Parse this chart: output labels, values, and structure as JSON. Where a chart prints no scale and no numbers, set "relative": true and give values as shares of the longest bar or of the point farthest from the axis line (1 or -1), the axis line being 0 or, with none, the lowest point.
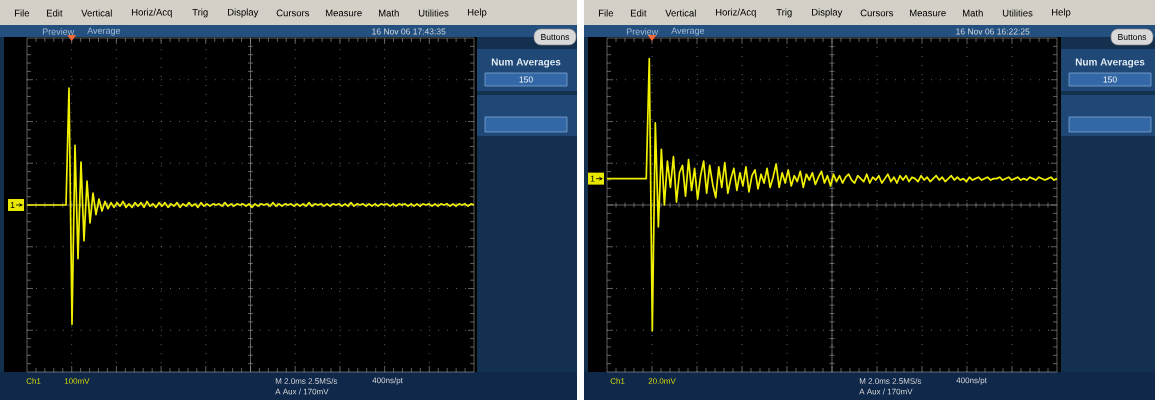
{
  "chart_data": [
    {
      "type": "line",
      "relative": true,
      "grid": true,
      "categories": [
        null,
        null,
        null,
        null,
        null,
        null,
        null,
        null,
        null,
        null,
        null,
        null,
        null,
        null,
        null,
        null,
        null,
        null,
        null,
        null,
        null,
        null,
        null,
        null,
        null,
        null,
        null,
        null,
        null,
        null,
        null,
        null,
        null,
        null,
        null,
        null,
        null,
        null,
        null,
        null,
        null,
        null,
        null,
        null,
        null,
        null,
        null,
        null,
        null,
        null,
        null,
        null,
        null,
        null,
        null,
        null,
        null,
        null,
        null,
        null,
        null,
        null,
        null,
        null,
        null,
        null,
        null,
        null,
        null,
        null,
        null,
        null,
        null,
        null,
        null,
        null,
        null,
        null,
        null,
        null,
        null,
        null,
        null,
        null,
        null,
        null,
        null,
        null,
        null,
        null,
        null,
        null,
        null,
        null,
        null,
        null,
        null,
        null,
        null,
        null,
        null,
        null,
        null,
        null,
        null,
        null,
        null,
        null,
        null,
        null,
        null,
        null,
        null,
        null,
        null,
        null,
        null,
        null,
        null,
        null,
        null,
        null,
        null,
        null,
        null,
        null,
        null,
        null,
        null,
        null,
        null,
        null,
        null,
        null,
        null,
        null,
        null,
        null,
        null,
        null,
        null,
        null,
        null,
        null,
        null,
        null,
        null,
        null,
        null,
        null
      ],
      "series": [
        {
          "color": "#f0f000",
          "values": [
            0,
            0,
            0,
            0,
            0,
            0,
            0,
            0,
            0,
            0,
            0,
            0,
            0,
            0,
            0.98,
            -1,
            0.5,
            -0.45,
            0.36,
            -0.3,
            0.2,
            -0.15,
            0.1,
            -0.08,
            0.05,
            -0.05,
            0.03,
            -0.03,
            0.02,
            -0.02,
            0.02,
            -0.01,
            0.03,
            -0.02,
            0.01,
            -0.02,
            0.02,
            -0.01,
            0.02,
            -0.02,
            0.03,
            -0.01,
            0.01,
            -0.02,
            0.02,
            -0.01,
            0.02,
            -0.02,
            0.01,
            -0.01,
            0.02,
            -0.02,
            0.01,
            -0.01,
            0.02,
            -0.01,
            0.01,
            -0.02,
            0.02,
            -0.01,
            0.01,
            -0.01,
            0.01,
            0,
            0.01,
            -0.01,
            0.02,
            -0.01,
            0.01,
            -0.01,
            0.01,
            0,
            0.01,
            -0.01,
            0.01,
            -0.02,
            0.01,
            -0.01,
            0.01,
            0,
            0.01,
            -0.01,
            0.02,
            -0.01,
            0.01,
            -0.01,
            0.01,
            0,
            0.01,
            -0.01,
            0.01,
            -0.01,
            0.01,
            -0.01,
            0.02,
            -0.01,
            0.01,
            0,
            0.01,
            -0.01,
            0.01,
            -0.01,
            0.01,
            0,
            0.01,
            -0.01,
            0.01,
            -0.01,
            0.02,
            -0.01,
            0.01,
            0,
            0.01,
            -0.01,
            0.01,
            -0.01,
            0.01,
            -0.01,
            0.01,
            0,
            0.01,
            -0.01,
            0.01,
            -0.01,
            0.01,
            0,
            0.01,
            -0.01,
            0.01,
            -0.01,
            0.01,
            -0.01,
            0.01,
            0,
            0.01,
            -0.01,
            0.01,
            -0.01,
            0.01,
            0,
            0.01,
            -0.01,
            0.01,
            -0.01,
            0.01,
            0,
            0.01,
            -0.01,
            0.01,
            0
          ]
        }
      ],
      "annotations": [
        "File",
        "Edit",
        "Vertical",
        "Horiz/Acq",
        "Trig",
        "Display",
        "Cursors",
        "Measure",
        "Math",
        "Utilities",
        "Help",
        "Preview",
        "Average",
        "16 Nov 06 17:43:35",
        "Buttons",
        "Num Averages",
        "150",
        "1",
        "Ch1",
        "100mV",
        "M 2.0ms 2.5MS/s",
        "400ns/pt",
        "A Aux / 170mV"
      ]
    },
    {
      "type": "line",
      "relative": true,
      "grid": true,
      "categories": [
        null,
        null,
        null,
        null,
        null,
        null,
        null,
        null,
        null,
        null,
        null,
        null,
        null,
        null,
        null,
        null,
        null,
        null,
        null,
        null,
        null,
        null,
        null,
        null,
        null,
        null,
        null,
        null,
        null,
        null,
        null,
        null,
        null,
        null,
        null,
        null,
        null,
        null,
        null,
        null,
        null,
        null,
        null,
        null,
        null,
        null,
        null,
        null,
        null,
        null,
        null,
        null,
        null,
        null,
        null,
        null,
        null,
        null,
        null,
        null,
        null,
        null,
        null,
        null,
        null,
        null,
        null,
        null,
        null,
        null,
        null,
        null,
        null,
        null,
        null,
        null,
        null,
        null,
        null,
        null,
        null,
        null,
        null,
        null,
        null,
        null,
        null,
        null,
        null,
        null,
        null,
        null,
        null,
        null,
        null,
        null,
        null,
        null,
        null,
        null,
        null,
        null,
        null,
        null,
        null,
        null,
        null,
        null,
        null,
        null,
        null,
        null,
        null,
        null,
        null,
        null,
        null,
        null,
        null,
        null,
        null,
        null,
        null,
        null,
        null,
        null,
        null,
        null,
        null,
        null,
        null,
        null,
        null,
        null,
        null,
        null,
        null,
        null,
        null,
        null,
        null,
        null,
        null,
        null,
        null,
        null,
        null,
        null,
        null,
        null
      ],
      "series": [
        {
          "color": "#f0f000",
          "values": [
            0.18,
            0.18,
            0.18,
            0.18,
            0.18,
            0.18,
            0.18,
            0.18,
            0.18,
            0.18,
            0.18,
            0.18,
            0.18,
            0.18,
            1.0,
            -0.86,
            0.56,
            -0.15,
            0.38,
            0,
            0.3,
            0.12,
            0.33,
            0.02,
            0.22,
            0.27,
            0.06,
            0.31,
            0.1,
            0.25,
            0.04,
            0.2,
            0.3,
            0.08,
            0.27,
            0.14,
            0.05,
            0.26,
            0.12,
            0.29,
            0.08,
            0.18,
            0.25,
            0.1,
            0.22,
            0.13,
            0.26,
            0.09,
            0.2,
            0.24,
            0.11,
            0.21,
            0.15,
            0.25,
            0.12,
            0.19,
            0.28,
            0.12,
            0.22,
            0.15,
            0.24,
            0.13,
            0.2,
            0.16,
            0.23,
            0.12,
            0.21,
            0.17,
            0.22,
            0.14,
            0.19,
            0.23,
            0.15,
            0.2,
            0.13,
            0.21,
            0.16,
            0.2,
            0.15,
            0.19,
            0.21,
            0.17,
            0.15,
            0.2,
            0.18,
            0.16,
            0.21,
            0.15,
            0.19,
            0.17,
            0.2,
            0.15,
            0.18,
            0.21,
            0.16,
            0.19,
            0.15,
            0.2,
            0.17,
            0.2,
            0.16,
            0.19,
            0.18,
            0.16,
            0.2,
            0.17,
            0.19,
            0.16,
            0.18,
            0.2,
            0.17,
            0.19,
            0.16,
            0.18,
            0.2,
            0.17,
            0.19,
            0.17,
            0.18,
            0.16,
            0.19,
            0.17,
            0.18,
            0.19,
            0.17,
            0.18,
            0.19,
            0.17,
            0.18,
            0.18,
            0.19,
            0.17,
            0.18,
            0.19,
            0.17,
            0.18,
            0.19,
            0.17,
            0.18,
            0.17,
            0.19,
            0.18,
            0.17,
            0.19,
            0.18,
            0.17,
            0.18,
            0.19,
            0.17,
            0.18
          ]
        }
      ],
      "annotations": [
        "File",
        "Edit",
        "Vertical",
        "Horiz/Acq",
        "Trig",
        "Display",
        "Cursors",
        "Measure",
        "Math",
        "Utilities",
        "Help",
        "Preview",
        "Average",
        "16 Nov 06 16:22:25",
        "Buttons",
        "Num Averages",
        "150",
        "1",
        "Ch1",
        "20.0mV",
        "M 2.0ms 2.5MS/s",
        "400ns/pt",
        "A Aux / 170mV"
      ]
    }
  ]
}
